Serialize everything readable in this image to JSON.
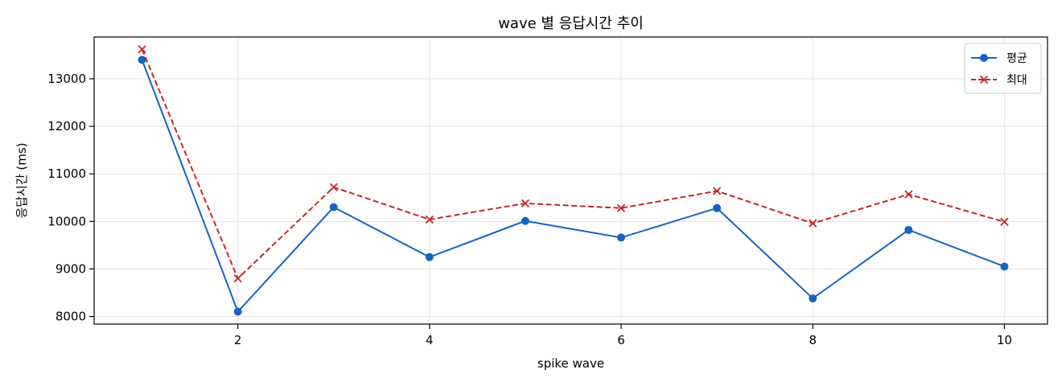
{
  "chart_data": {
    "type": "line",
    "title": "wave 별 응답시간 추이",
    "xlabel": "spike wave",
    "ylabel": "응답시간 (ms)",
    "x": [
      1,
      2,
      3,
      4,
      5,
      6,
      7,
      8,
      9,
      10
    ],
    "xticks": [
      2,
      4,
      6,
      8,
      10
    ],
    "yticks": [
      8000,
      9000,
      10000,
      11000,
      12000,
      13000
    ],
    "xlim": [
      0.5,
      10.45
    ],
    "ylim": [
      7840,
      13880
    ],
    "grid": true,
    "legend_position": "top-right",
    "series": [
      {
        "name": "평균",
        "values": [
          13400,
          8100,
          10300,
          9250,
          10010,
          9660,
          10280,
          8380,
          9820,
          9050
        ],
        "color": "#1565c0",
        "line_style": "solid",
        "marker": "circle"
      },
      {
        "name": "최대",
        "values": [
          13620,
          8800,
          10720,
          10040,
          10380,
          10280,
          10640,
          9960,
          10570,
          9990
        ],
        "color": "#c62828",
        "line_style": "dashed",
        "marker": "x"
      }
    ]
  }
}
